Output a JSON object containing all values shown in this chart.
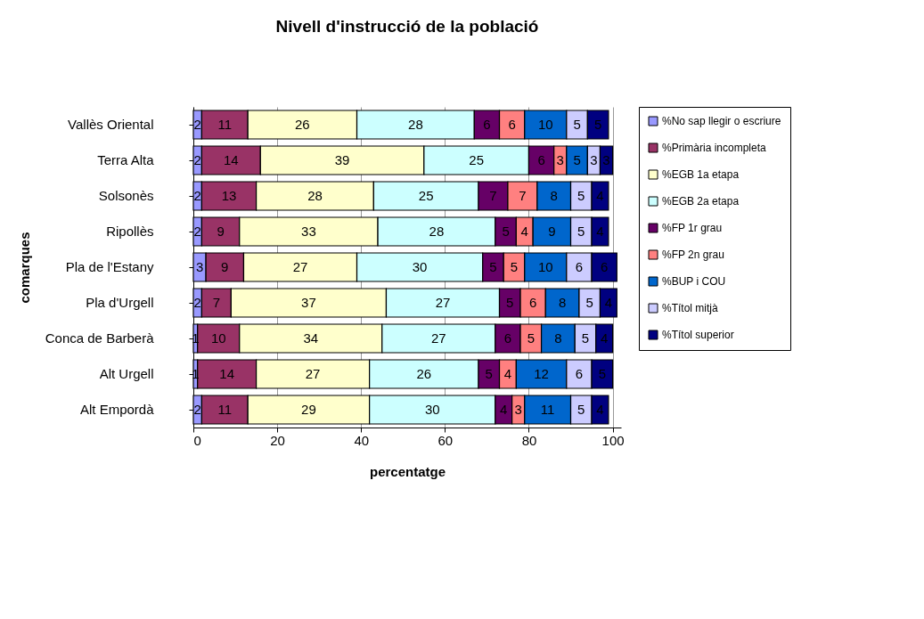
{
  "chart_data": {
    "type": "bar",
    "orientation": "horizontal",
    "stacked": true,
    "title": "Nivell d'instrucció de la població",
    "xlabel": "percentatge",
    "ylabel": "comarques",
    "categories": [
      "Vallès Oriental",
      "Terra Alta",
      "Solsonès",
      "Ripollès",
      "Pla de l'Estany",
      "Pla d'Urgell",
      "Conca de Barberà",
      "Alt Urgell",
      "Alt Empordà"
    ],
    "series": [
      {
        "name": "%No sap llegir o escriure",
        "color": "#9999ff",
        "values": [
          2,
          2,
          2,
          2,
          3,
          2,
          1,
          1,
          2
        ]
      },
      {
        "name": " %Primària incompleta",
        "color": "#993366",
        "values": [
          11,
          14,
          13,
          9,
          9,
          7,
          10,
          14,
          11
        ]
      },
      {
        "name": "%EGB 1a etapa",
        "color": "#ffffcc",
        "values": [
          26,
          39,
          28,
          33,
          27,
          37,
          34,
          27,
          29
        ]
      },
      {
        "name": "%EGB 2a etapa",
        "color": "#ccffff",
        "values": [
          28,
          25,
          25,
          28,
          30,
          27,
          27,
          26,
          30
        ]
      },
      {
        "name": "%FP 1r grau",
        "color": "#660066",
        "values": [
          6,
          6,
          7,
          5,
          5,
          5,
          6,
          5,
          4
        ]
      },
      {
        "name": "%FP 2n grau",
        "color": "#ff8080",
        "values": [
          6,
          3,
          7,
          4,
          5,
          6,
          5,
          4,
          3
        ]
      },
      {
        "name": "%BUP i COU",
        "color": "#0066cc",
        "values": [
          10,
          5,
          8,
          9,
          10,
          8,
          8,
          12,
          11
        ]
      },
      {
        "name": "%Títol mitjà",
        "color": "#ccccff",
        "values": [
          5,
          3,
          5,
          5,
          6,
          5,
          5,
          6,
          5
        ]
      },
      {
        "name": "%Títol superior",
        "color": "#000080",
        "values": [
          5,
          3,
          4,
          4,
          6,
          4,
          4,
          5,
          4
        ]
      }
    ],
    "xlim": [
      0,
      102
    ],
    "xticks": [
      0,
      20,
      40,
      60,
      80,
      100
    ],
    "grid": "x",
    "legend": "right",
    "data_labels": true
  }
}
